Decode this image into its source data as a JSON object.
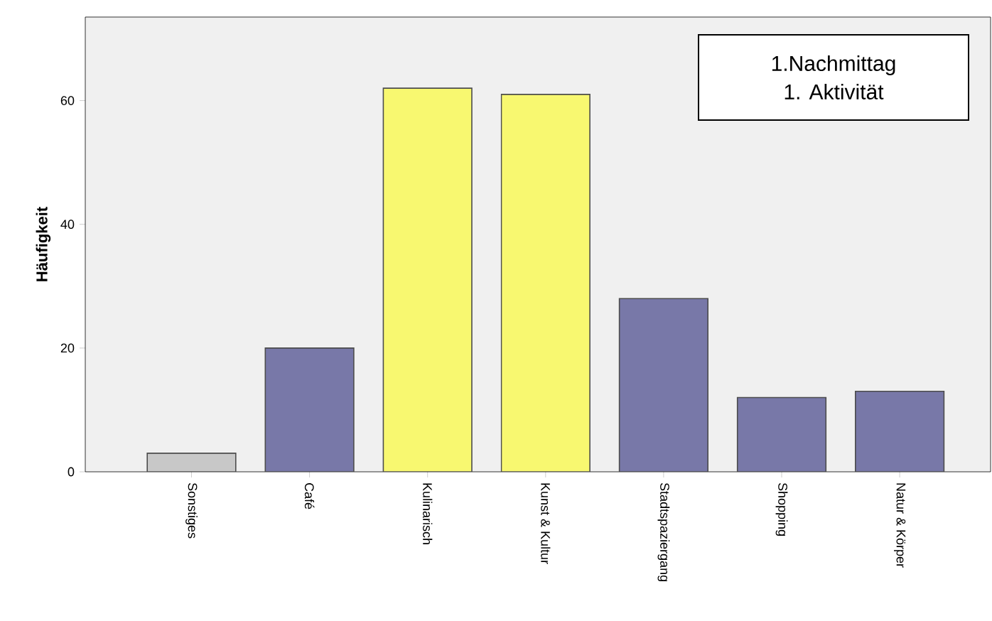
{
  "chart_data": {
    "type": "bar",
    "ylabel": "Häufigkeit",
    "categories": [
      "Sonstiges",
      "Café",
      "Kulinarisch",
      "Kunst & Kultur",
      "Stadtspaziergang",
      "Shopping",
      "Natur & Körper"
    ],
    "values": [
      3,
      20,
      62,
      61,
      28,
      12,
      13
    ],
    "colors": [
      "#c8c8c8",
      "#7878a8",
      "#f8f870",
      "#f8f870",
      "#7878a8",
      "#7878a8",
      "#7878a8"
    ],
    "ylim": [
      0,
      73.5
    ],
    "yticks": [
      0,
      20,
      40,
      60
    ],
    "annotations": [
      "1.Nachmittag",
      "1. Aktivität"
    ]
  }
}
